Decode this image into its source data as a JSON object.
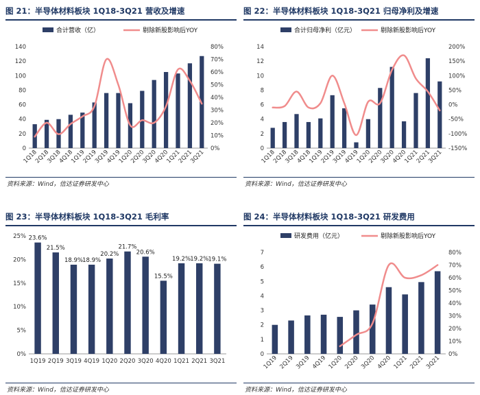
{
  "colors": {
    "bar": "#2e3f67",
    "line": "#f08c8c",
    "title": "#1f3864"
  },
  "chart_data": [
    {
      "type": "bar",
      "title": "图 21：半导体材料板块 1Q18-3Q21 营收及增速",
      "source": "资料来源：Wind，信达证券研发中心",
      "categories": [
        "1Q18",
        "2Q18",
        "3Q18",
        "4Q18",
        "1Q19",
        "2Q19",
        "3Q19",
        "4Q19",
        "1Q20",
        "2Q20",
        "3Q20",
        "4Q20",
        "1Q21",
        "2Q21",
        "3Q21"
      ],
      "series": [
        {
          "name": "合计营收（亿）",
          "type": "bar",
          "axis": "left",
          "values": [
            33,
            39,
            40,
            46,
            49,
            63,
            76,
            76,
            62,
            79,
            94,
            105,
            103,
            117,
            127
          ]
        },
        {
          "name": "剔除新股影响后YOY",
          "type": "line",
          "axis": "right",
          "values": [
            0.09,
            0.2,
            0.11,
            0.19,
            0.25,
            0.33,
            0.7,
            0.5,
            0.18,
            0.22,
            0.2,
            0.33,
            0.62,
            0.53,
            0.35
          ]
        }
      ],
      "ylim": [
        0,
        140
      ],
      "yticks": [
        "0",
        "20",
        "40",
        "60",
        "80",
        "100",
        "120",
        "140"
      ],
      "y2lim": [
        0,
        0.8
      ],
      "y2ticks": [
        "0%",
        "10%",
        "20%",
        "30%",
        "40%",
        "50%",
        "60%",
        "70%",
        "80%"
      ],
      "legend": "top"
    },
    {
      "type": "bar",
      "title": "图 22：半导体材料板块 1Q18-3Q21 归母净利及增速",
      "source": "资料来源：Wind，信达证券研发中心",
      "categories": [
        "1Q18",
        "2Q18",
        "3Q18",
        "4Q18",
        "1Q19",
        "2Q19",
        "3Q19",
        "4Q19",
        "1Q20",
        "2Q20",
        "3Q20",
        "4Q20",
        "1Q21",
        "2Q21",
        "3Q21"
      ],
      "series": [
        {
          "name": "合计归母净利（亿元）",
          "type": "bar",
          "axis": "left",
          "values": [
            2.8,
            3.6,
            4.7,
            3.6,
            4.1,
            7.3,
            5.5,
            0.8,
            4.0,
            8.3,
            11.2,
            3.7,
            7.6,
            12.4,
            9.2
          ]
        },
        {
          "name": "剔除新股影响后YOY",
          "type": "line",
          "axis": "right",
          "values": [
            -0.1,
            -0.05,
            0.45,
            -0.1,
            0.05,
            1.0,
            0.05,
            -1.05,
            0.1,
            0.05,
            1.2,
            1.7,
            0.9,
            0.45,
            -0.2
          ]
        }
      ],
      "ylim": [
        0,
        14
      ],
      "yticks": [
        "0",
        "2",
        "4",
        "6",
        "8",
        "10",
        "12",
        "14"
      ],
      "y2lim": [
        -1.5,
        2.0
      ],
      "y2ticks": [
        "-150%",
        "-100%",
        "-50%",
        "0%",
        "50%",
        "100%",
        "150%",
        "200%"
      ],
      "legend": "top"
    },
    {
      "type": "bar",
      "title": "图 23：半导体材料板块 1Q18-3Q21 毛利率",
      "source": "资料来源：Wind，信达证券研发中心",
      "categories": [
        "1Q19",
        "2Q19",
        "3Q19",
        "4Q19",
        "1Q20",
        "2Q20",
        "3Q20",
        "4Q20",
        "1Q21",
        "2Q21",
        "3Q21"
      ],
      "series": [
        {
          "name": "",
          "type": "bar",
          "axis": "left",
          "values": [
            0.236,
            0.215,
            0.189,
            0.189,
            0.202,
            0.217,
            0.206,
            0.155,
            0.192,
            0.192,
            0.191
          ],
          "labels": [
            "23.6%",
            "21.5%",
            "18.9%",
            "18.9%",
            "20.2%",
            "21.7%",
            "20.6%",
            "15.5%",
            "19.2%",
            "19.2%",
            "19.1%"
          ]
        }
      ],
      "ylim": [
        0,
        0.25
      ],
      "yticks": [
        "0%",
        "5%",
        "10%",
        "15%",
        "20%",
        "25%"
      ],
      "legend": "none"
    },
    {
      "type": "bar",
      "title": "图 24：半导体材料板块 1Q18-3Q21 研发费用",
      "source": "资料来源：Wind，信达证券研发中心",
      "categories": [
        "1Q19",
        "2Q19",
        "3Q19",
        "4Q19",
        "1Q20",
        "2Q20",
        "3Q20",
        "4Q20",
        "1Q21",
        "2Q21",
        "3Q21"
      ],
      "series": [
        {
          "name": "研发费用（亿元）",
          "type": "bar",
          "axis": "left",
          "values": [
            2.0,
            2.3,
            2.65,
            2.7,
            2.55,
            3.0,
            3.4,
            4.6,
            4.1,
            4.95,
            5.7
          ]
        },
        {
          "name": "剔除新股影响后YOY",
          "type": "line",
          "axis": "right",
          "values": [
            null,
            null,
            null,
            null,
            0.06,
            0.15,
            0.24,
            0.7,
            0.6,
            0.62,
            0.7
          ]
        }
      ],
      "ylim": [
        0,
        7
      ],
      "yticks": [
        "0",
        "1",
        "2",
        "3",
        "4",
        "5",
        "6",
        "7"
      ],
      "y2lim": [
        0,
        0.8
      ],
      "y2ticks": [
        "0%",
        "10%",
        "20%",
        "30%",
        "40%",
        "50%",
        "60%",
        "70%",
        "80%"
      ],
      "legend": "top"
    }
  ]
}
